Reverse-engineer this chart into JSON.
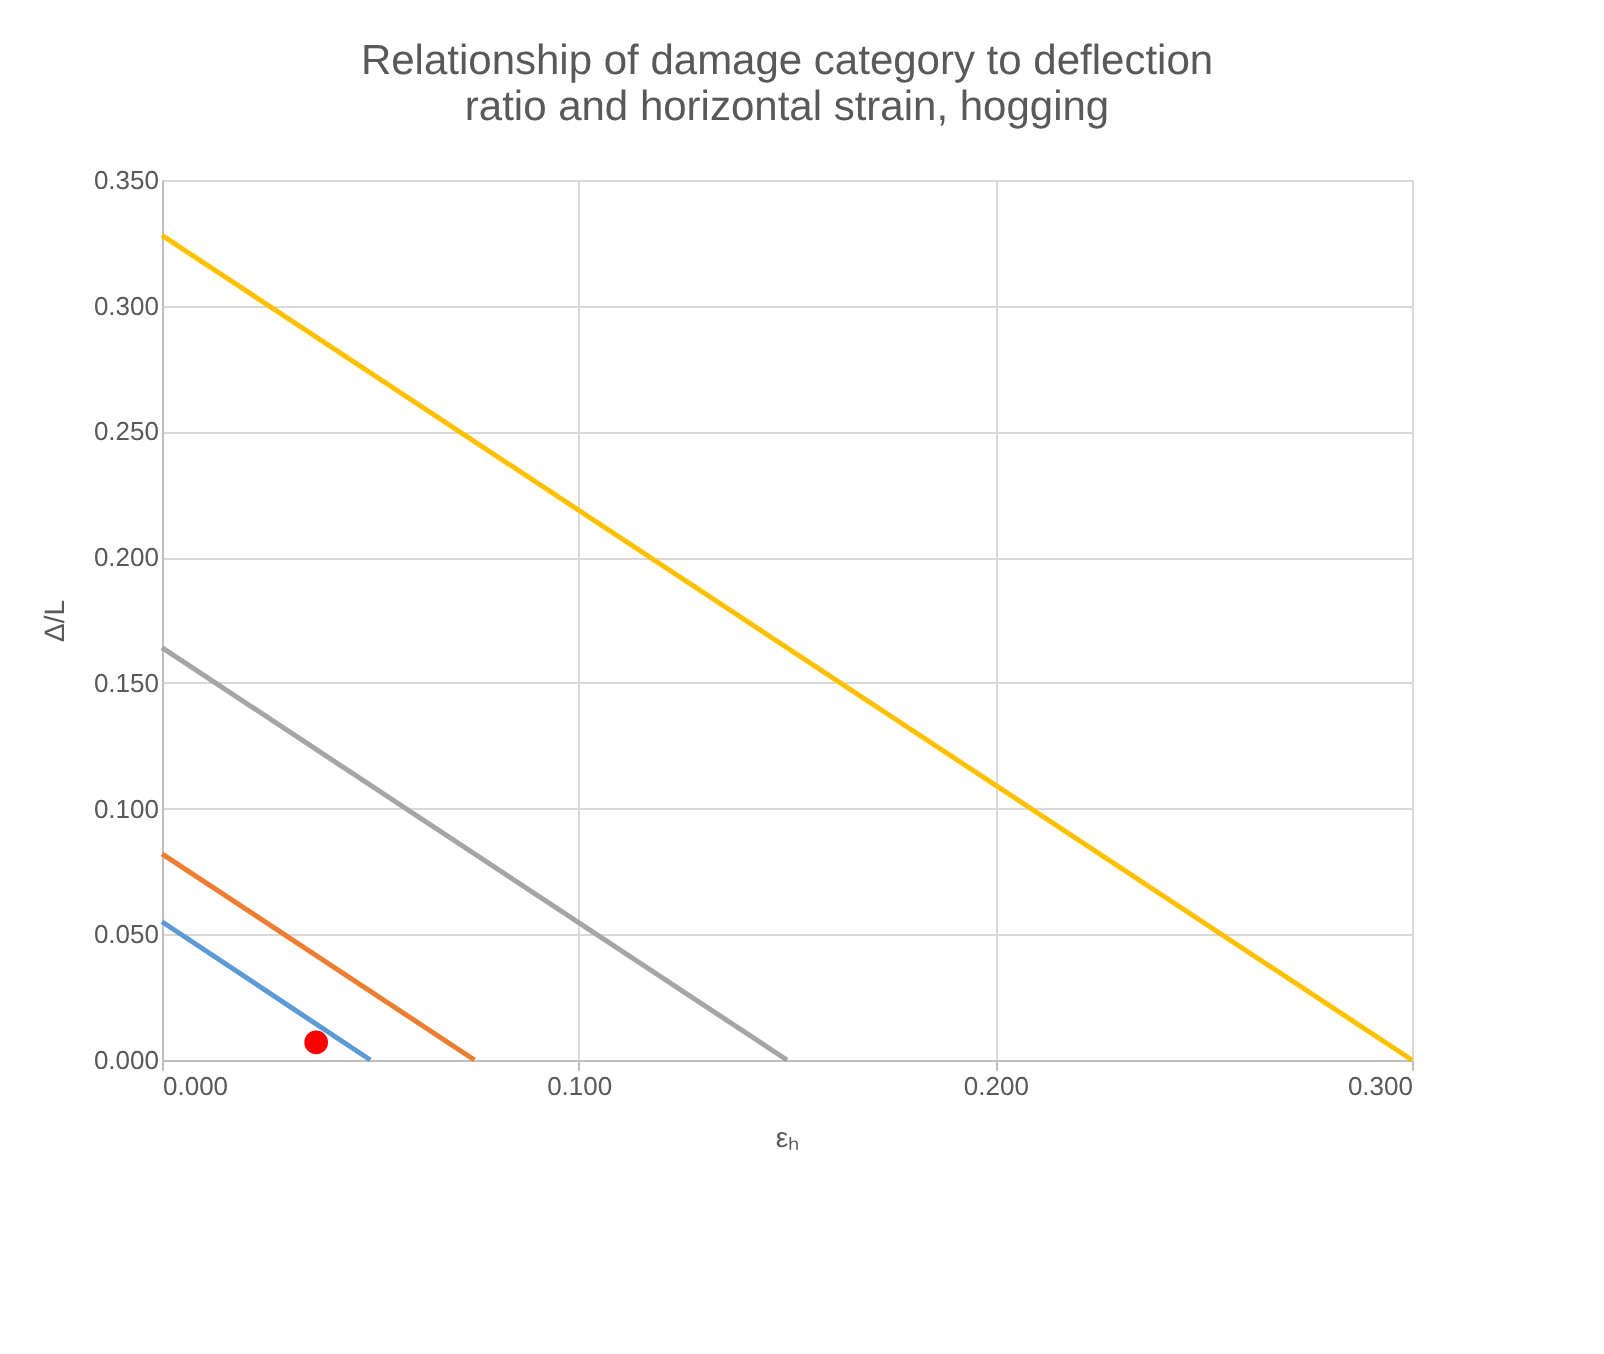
{
  "chart_data": {
    "type": "line",
    "title": "Relationship of damage category to deflection ratio and horizontal strain, hogging",
    "xlabel": "εₕ",
    "ylabel": "Δ/L",
    "xlim": [
      0,
      0.3
    ],
    "xticks": [
      {
        "value": 0,
        "label": "0.000"
      },
      {
        "value": 0.1,
        "label": "0.100"
      },
      {
        "value": 0.2,
        "label": "0.200"
      },
      {
        "value": 0.3,
        "label": "0.300"
      }
    ],
    "ylim": [
      0,
      0.35
    ],
    "yticks": [
      {
        "value": 0,
        "label": "0.000"
      },
      {
        "value": 0.05,
        "label": "0.050"
      },
      {
        "value": 0.1,
        "label": "0.100"
      },
      {
        "value": 0.15,
        "label": "0.150"
      },
      {
        "value": 0.2,
        "label": "0.200"
      },
      {
        "value": 0.25,
        "label": "0.250"
      },
      {
        "value": 0.3,
        "label": "0.300"
      },
      {
        "value": 0.35,
        "label": "0.350"
      }
    ],
    "grid": true,
    "series": [
      {
        "color": "#5b9bd5",
        "x": [
          0,
          0.05
        ],
        "values": [
          0.055,
          0
        ]
      },
      {
        "color": "#ed7d31",
        "x": [
          0,
          0.075
        ],
        "values": [
          0.082,
          0
        ]
      },
      {
        "color": "#a5a5a5",
        "x": [
          0,
          0.15
        ],
        "values": [
          0.164,
          0
        ]
      },
      {
        "color": "#ffc000",
        "x": [
          0,
          0.3
        ],
        "values": [
          0.328,
          0
        ]
      },
      {
        "type": "scatter",
        "marker": "circle",
        "color": "#ff0000",
        "x": [
          0.037
        ],
        "values": [
          0.007
        ]
      }
    ]
  }
}
